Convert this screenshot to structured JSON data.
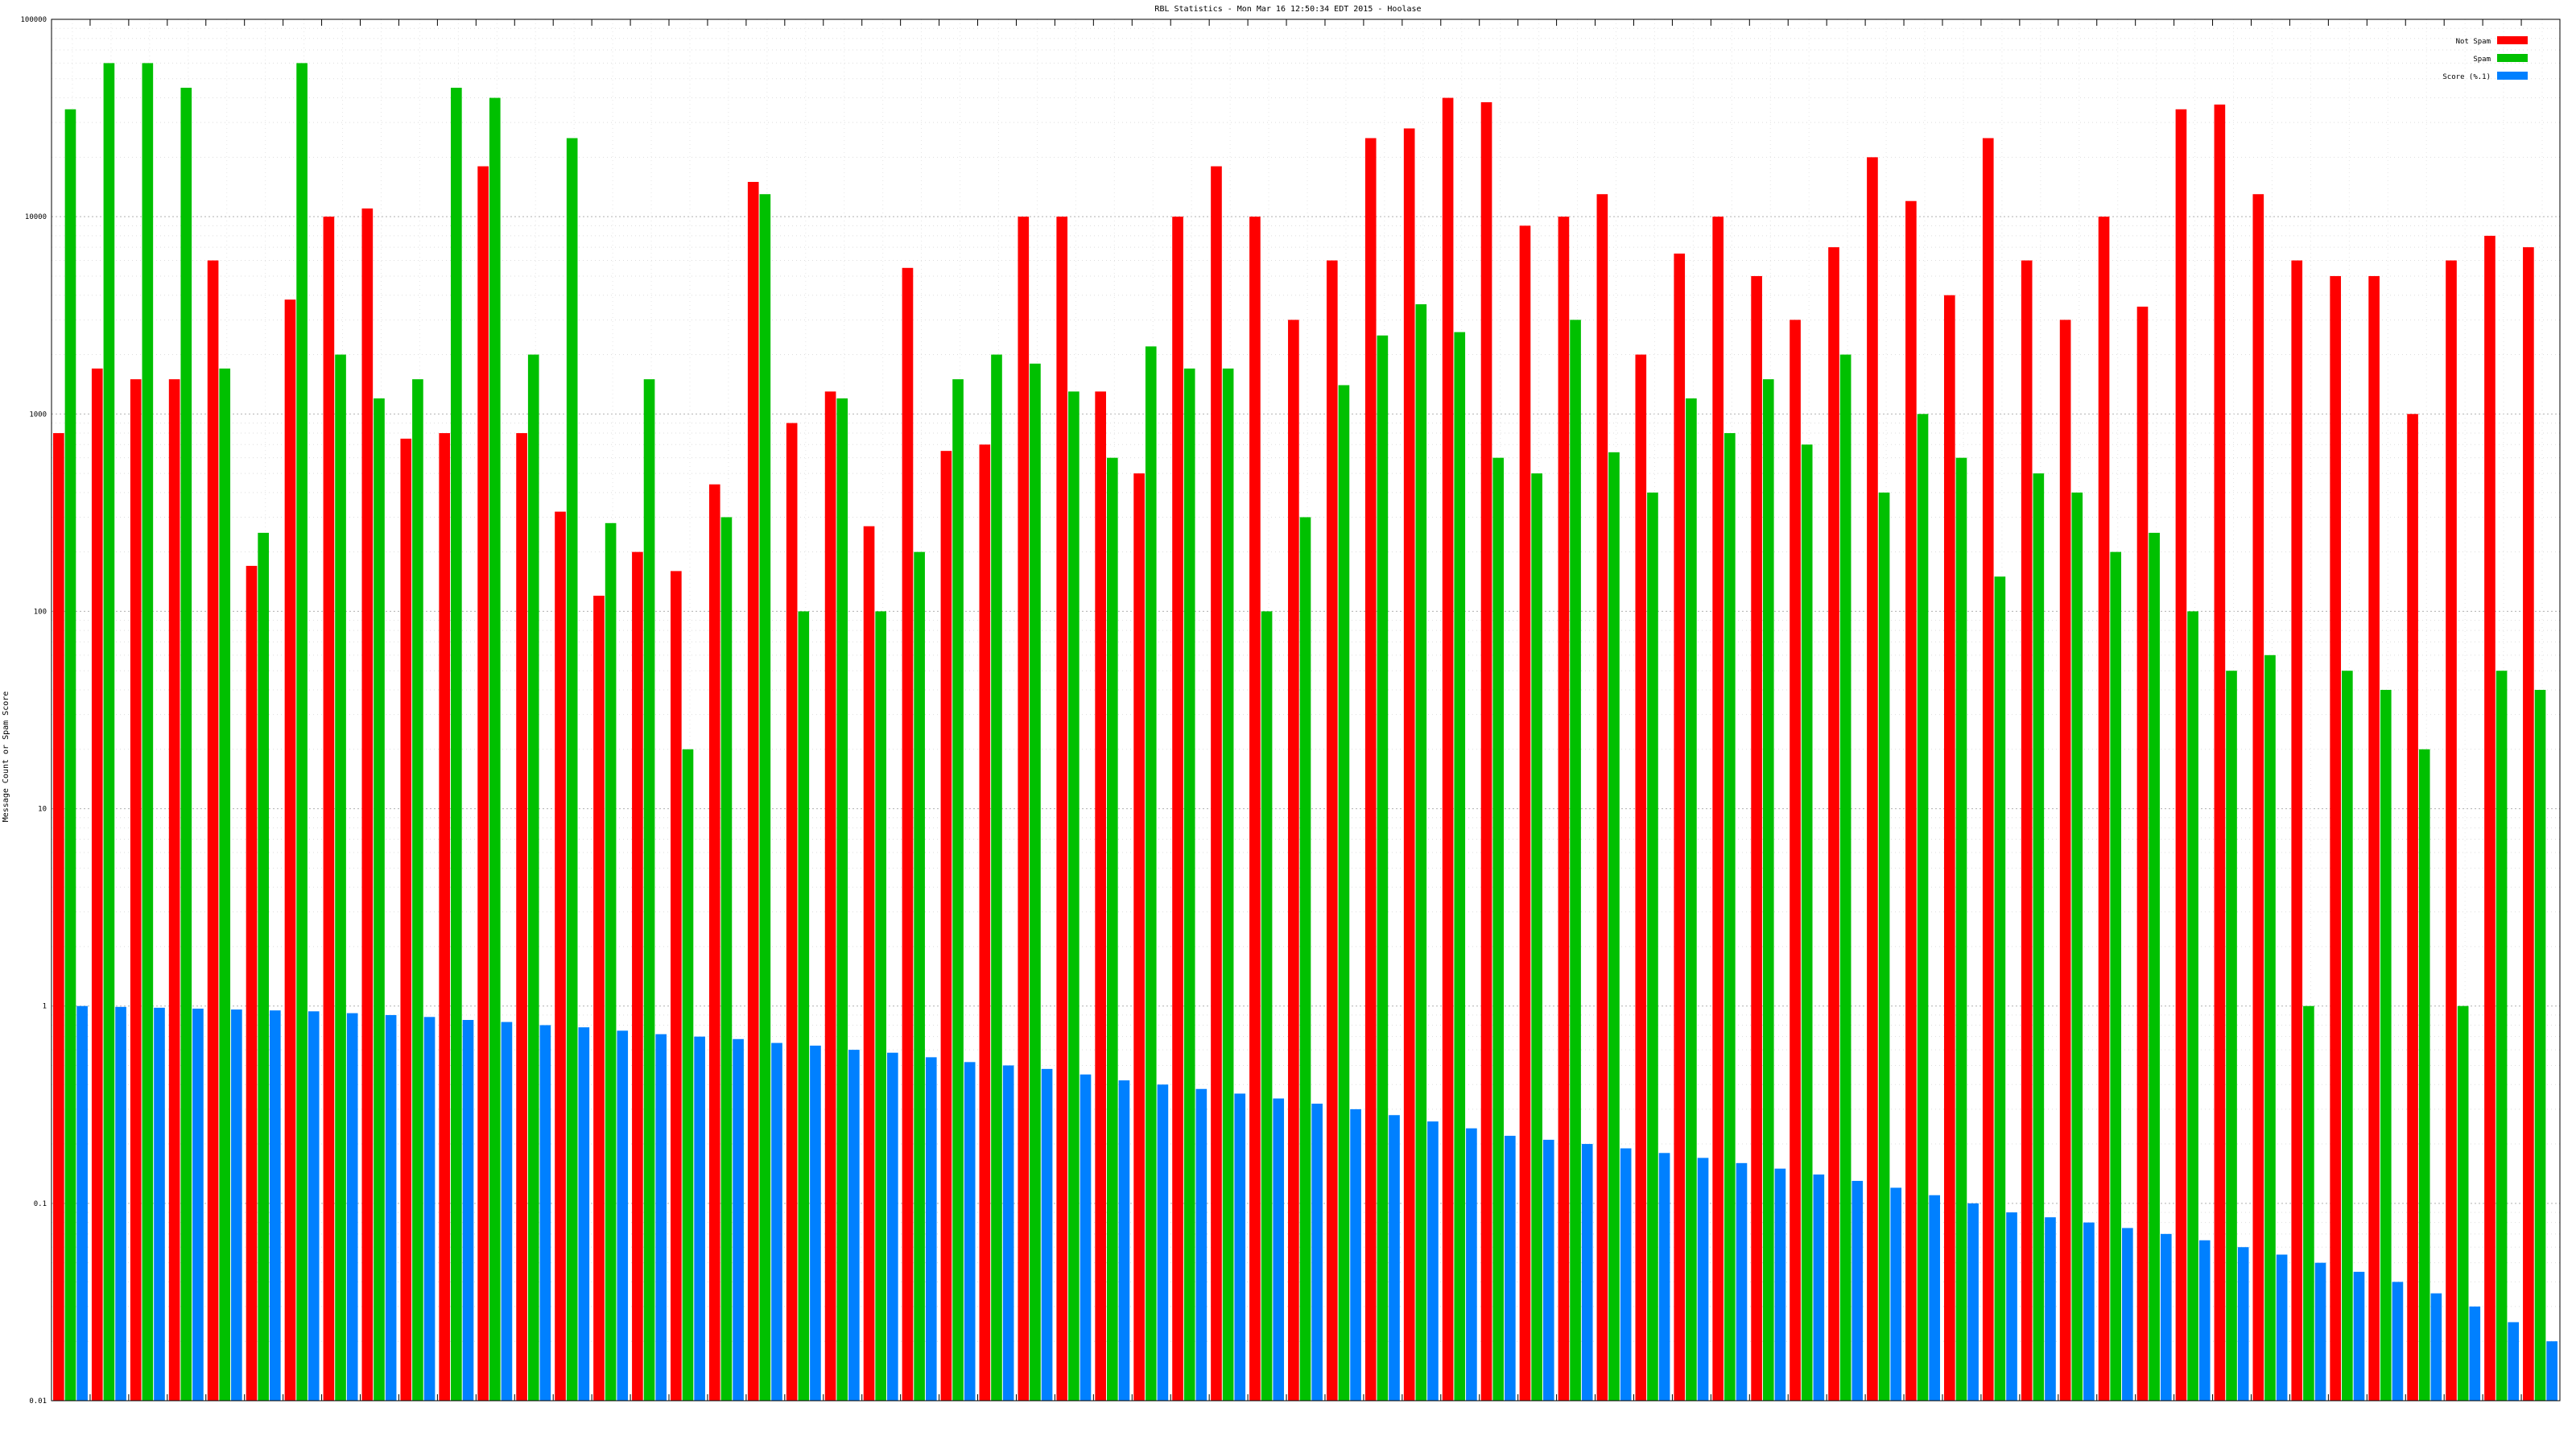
{
  "chart_data": {
    "type": "bar",
    "title": "RBL Statistics - Mon Mar 16 12:50:34 EDT 2015 - Hoolase",
    "ylabel": "Message Count or Spam Score",
    "xlabel": "",
    "yscale": "log",
    "ylim": [
      0.01,
      100000
    ],
    "grid": true,
    "legend_position": "top-right",
    "y_ticks": [
      "0.01",
      "0.1",
      "1",
      "10",
      "100",
      "1000",
      "10000",
      "100000"
    ],
    "series": [
      {
        "name": "Not Spam",
        "color": "#ff0000",
        "values": [
          800,
          1700,
          1500,
          1500,
          6000,
          170,
          3800,
          10000,
          11000,
          750,
          800,
          18000,
          800,
          320,
          120,
          200,
          160,
          440,
          15000,
          900,
          1300,
          270,
          5500,
          650,
          700,
          10000,
          10000,
          1300,
          500,
          10000,
          18000,
          10000,
          3000,
          6000,
          25000,
          28000,
          40000,
          38000,
          9000,
          10000,
          13000,
          2000,
          6500,
          10000,
          5000,
          3000,
          7000,
          20000,
          12000,
          4000,
          25000,
          6000,
          3000,
          10000,
          3500,
          35000,
          37000,
          13000,
          6000,
          5000,
          5000,
          1000,
          6000,
          8000,
          7000
        ]
      },
      {
        "name": "Spam",
        "color": "#00c000",
        "values": [
          35000,
          60000,
          60000,
          45000,
          1700,
          250,
          60000,
          2000,
          1200,
          1500,
          45000,
          40000,
          2000,
          25000,
          280,
          1500,
          20,
          300,
          13000,
          100,
          1200,
          100,
          200,
          1500,
          2000,
          1800,
          1300,
          600,
          2200,
          1700,
          1700,
          100,
          300,
          1400,
          2500,
          3600,
          2600,
          600,
          500,
          3000,
          640,
          400,
          1200,
          800,
          1500,
          700,
          2000,
          400,
          1000,
          600,
          150,
          500,
          400,
          200,
          250,
          100,
          50,
          60,
          1,
          50,
          40,
          20,
          1,
          50,
          40
        ]
      },
      {
        "name": "Score (%.1)",
        "color": "#0080ff",
        "values": [
          1,
          0.99,
          0.98,
          0.97,
          0.96,
          0.95,
          0.94,
          0.92,
          0.9,
          0.88,
          0.85,
          0.83,
          0.8,
          0.78,
          0.75,
          0.72,
          0.7,
          0.68,
          0.65,
          0.63,
          0.6,
          0.58,
          0.55,
          0.52,
          0.5,
          0.48,
          0.45,
          0.42,
          0.4,
          0.38,
          0.36,
          0.34,
          0.32,
          0.3,
          0.28,
          0.26,
          0.24,
          0.22,
          0.21,
          0.2,
          0.19,
          0.18,
          0.17,
          0.16,
          0.15,
          0.14,
          0.13,
          0.12,
          0.11,
          0.1,
          0.09,
          0.085,
          0.08,
          0.075,
          0.07,
          0.065,
          0.06,
          0.055,
          0.05,
          0.045,
          0.04,
          0.035,
          0.03,
          0.025,
          0.02
        ]
      }
    ]
  },
  "colors": {
    "not_spam": "#ff0000",
    "spam": "#00c000",
    "score": "#0080ff",
    "grid": "#b0b0b0"
  }
}
